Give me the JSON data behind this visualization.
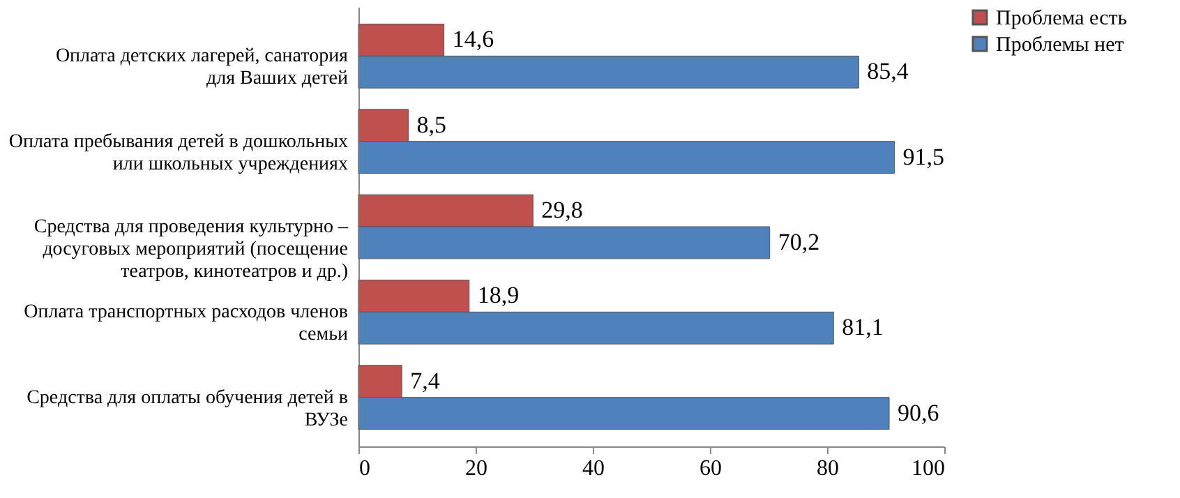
{
  "chart_data": {
    "type": "bar",
    "orientation": "horizontal",
    "categories": [
      "Оплата детских лагерей, санатория для Ваших детей",
      "Оплата пребывания детей в дошкольных или школьных учреждениях",
      "Средства для проведения культурно – досуговых мероприятий (посещение театров, кинотеатров и др.)",
      "Оплата транспортных расходов членов семьи",
      "Средства для оплаты обучения детей в ВУЗе"
    ],
    "series": [
      {
        "name": "Проблема есть",
        "color": "#c0504d",
        "values": [
          14.6,
          8.5,
          29.8,
          18.9,
          7.4
        ],
        "value_labels": [
          "14,6",
          "8,5",
          "29,8",
          "18,9",
          "7,4"
        ]
      },
      {
        "name": "Проблемы нет",
        "color": "#4f81bd",
        "values": [
          85.4,
          91.5,
          70.2,
          81.1,
          90.6
        ],
        "value_labels": [
          "85,4",
          "91,5",
          "70,2",
          "81,1",
          "90,6"
        ]
      }
    ],
    "xlim": [
      0,
      100
    ],
    "xticks": [
      0,
      20,
      40,
      60,
      80,
      100
    ],
    "grid": false,
    "legend": "right"
  }
}
